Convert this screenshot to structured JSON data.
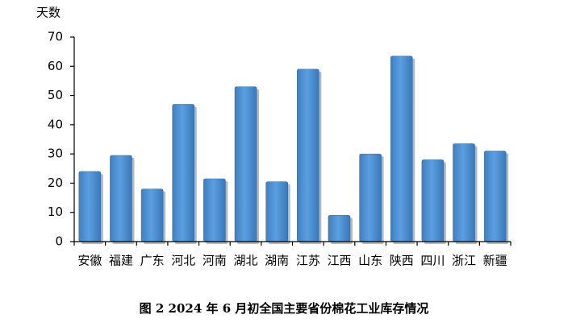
{
  "chart_data": {
    "type": "bar",
    "y_label": "天数",
    "caption": "图 2  2024 年 6 月初全国主要省份棉花工业库存情况",
    "categories": [
      "安徽",
      "福建",
      "广东",
      "河北",
      "河南",
      "湖北",
      "湖南",
      "江苏",
      "江西",
      "山东",
      "陕西",
      "四川",
      "浙江",
      "新疆"
    ],
    "values": [
      24,
      29.5,
      18,
      47,
      21.5,
      53,
      20.5,
      59,
      9,
      30,
      63.5,
      28,
      33.5,
      31
    ],
    "color": "#5b9fe0",
    "ylim": [
      0,
      70
    ],
    "yticks": [
      0,
      10,
      20,
      30,
      40,
      50,
      60,
      70
    ],
    "grid": false
  }
}
